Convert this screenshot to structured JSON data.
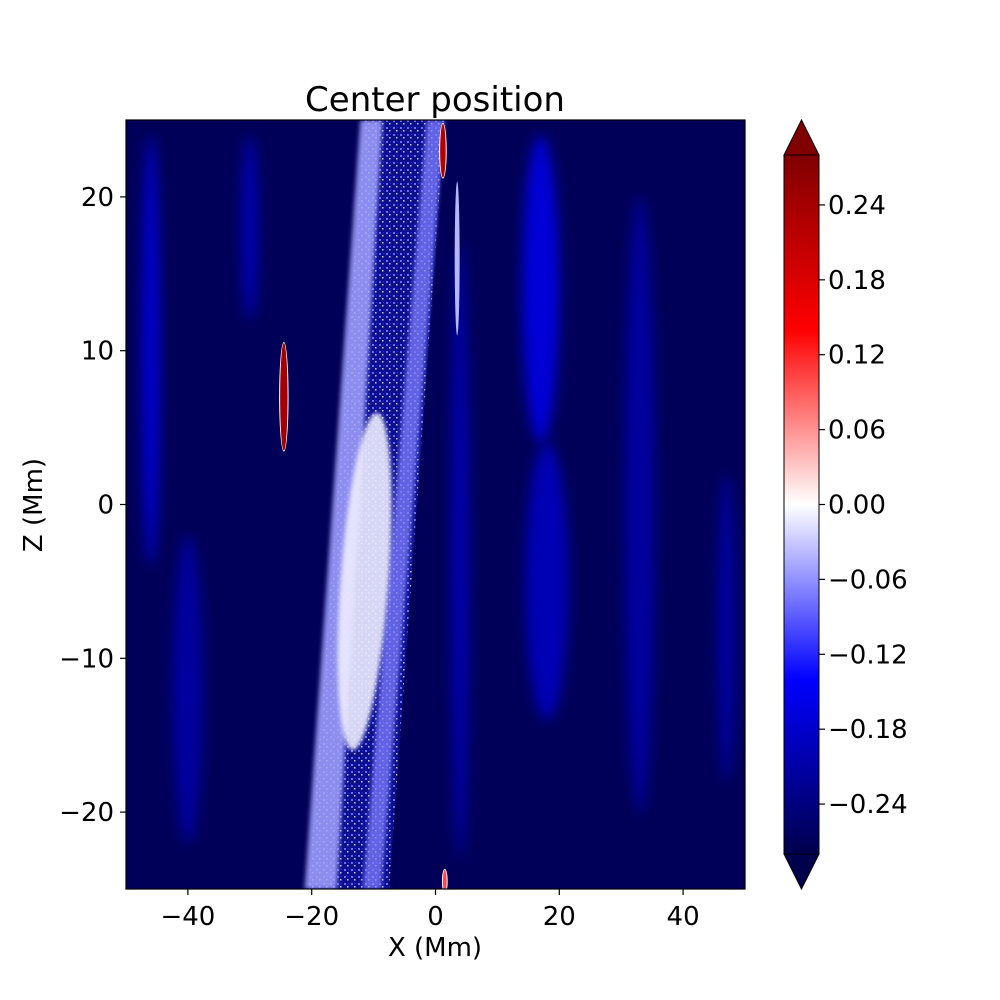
{
  "chart_data": {
    "type": "heatmap",
    "title": "Center position",
    "xlabel": "X (Mm)",
    "ylabel": "Z (Mm)",
    "xlim": [
      -50,
      50
    ],
    "ylim": [
      -25,
      25
    ],
    "x_ticks": [
      {
        "value": -40,
        "label": "−40"
      },
      {
        "value": -20,
        "label": "−20"
      },
      {
        "value": 0,
        "label": "0"
      },
      {
        "value": 20,
        "label": "20"
      },
      {
        "value": 40,
        "label": "40"
      }
    ],
    "y_ticks": [
      {
        "value": -20,
        "label": "−20"
      },
      {
        "value": -10,
        "label": "−10"
      },
      {
        "value": 0,
        "label": "0"
      },
      {
        "value": 10,
        "label": "10"
      },
      {
        "value": 20,
        "label": "20"
      }
    ],
    "colorbar": {
      "colormap": "seismic",
      "range": [
        -0.28,
        0.28
      ],
      "extend": "both",
      "ticks": [
        {
          "value": 0.24,
          "label": "0.24"
        },
        {
          "value": 0.18,
          "label": "0.18"
        },
        {
          "value": 0.12,
          "label": "0.12"
        },
        {
          "value": 0.06,
          "label": "0.06"
        },
        {
          "value": 0.0,
          "label": "0.00"
        },
        {
          "value": -0.06,
          "label": "−0.06"
        },
        {
          "value": -0.12,
          "label": "−0.12"
        },
        {
          "value": -0.18,
          "label": "−0.18"
        },
        {
          "value": -0.24,
          "label": "−0.24"
        }
      ]
    },
    "features": {
      "background_value": -0.27,
      "blue_streaks": [
        {
          "x": -46,
          "z": 10,
          "width": 3,
          "length": 28,
          "value": -0.17
        },
        {
          "x": 17,
          "z": 14,
          "width": 6,
          "length": 20,
          "value": -0.16
        },
        {
          "x": 18,
          "z": -5,
          "width": 7,
          "length": 18,
          "value": -0.19
        },
        {
          "x": 33,
          "z": 0,
          "width": 5,
          "length": 40,
          "value": -0.21
        },
        {
          "x": -40,
          "z": -12,
          "width": 5,
          "length": 20,
          "value": -0.21
        },
        {
          "x": 4,
          "z": -3,
          "width": 3,
          "length": 40,
          "value": -0.2
        },
        {
          "x": -30,
          "z": 18,
          "width": 3,
          "length": 12,
          "value": -0.2
        },
        {
          "x": 47,
          "z": -8,
          "width": 3,
          "length": 20,
          "value": -0.21
        }
      ],
      "main_band": {
        "x_at_top": -5,
        "x_at_bottom": -14,
        "width": 13,
        "value": -0.05,
        "core_value": -0.01
      },
      "red_features": [
        {
          "x": -24.5,
          "z": 7,
          "width": 1.2,
          "length": 7,
          "value": 0.24
        },
        {
          "x": 1.2,
          "z": 23,
          "width": 0.9,
          "length": 3.5,
          "value": 0.22
        },
        {
          "x": 1.5,
          "z": -24.5,
          "width": 0.6,
          "length": 1.5,
          "value": 0.1
        }
      ],
      "white_streaks": [
        {
          "x": 3.5,
          "z": 16,
          "width": 0.8,
          "length": 10,
          "value": -0.04
        }
      ]
    }
  }
}
